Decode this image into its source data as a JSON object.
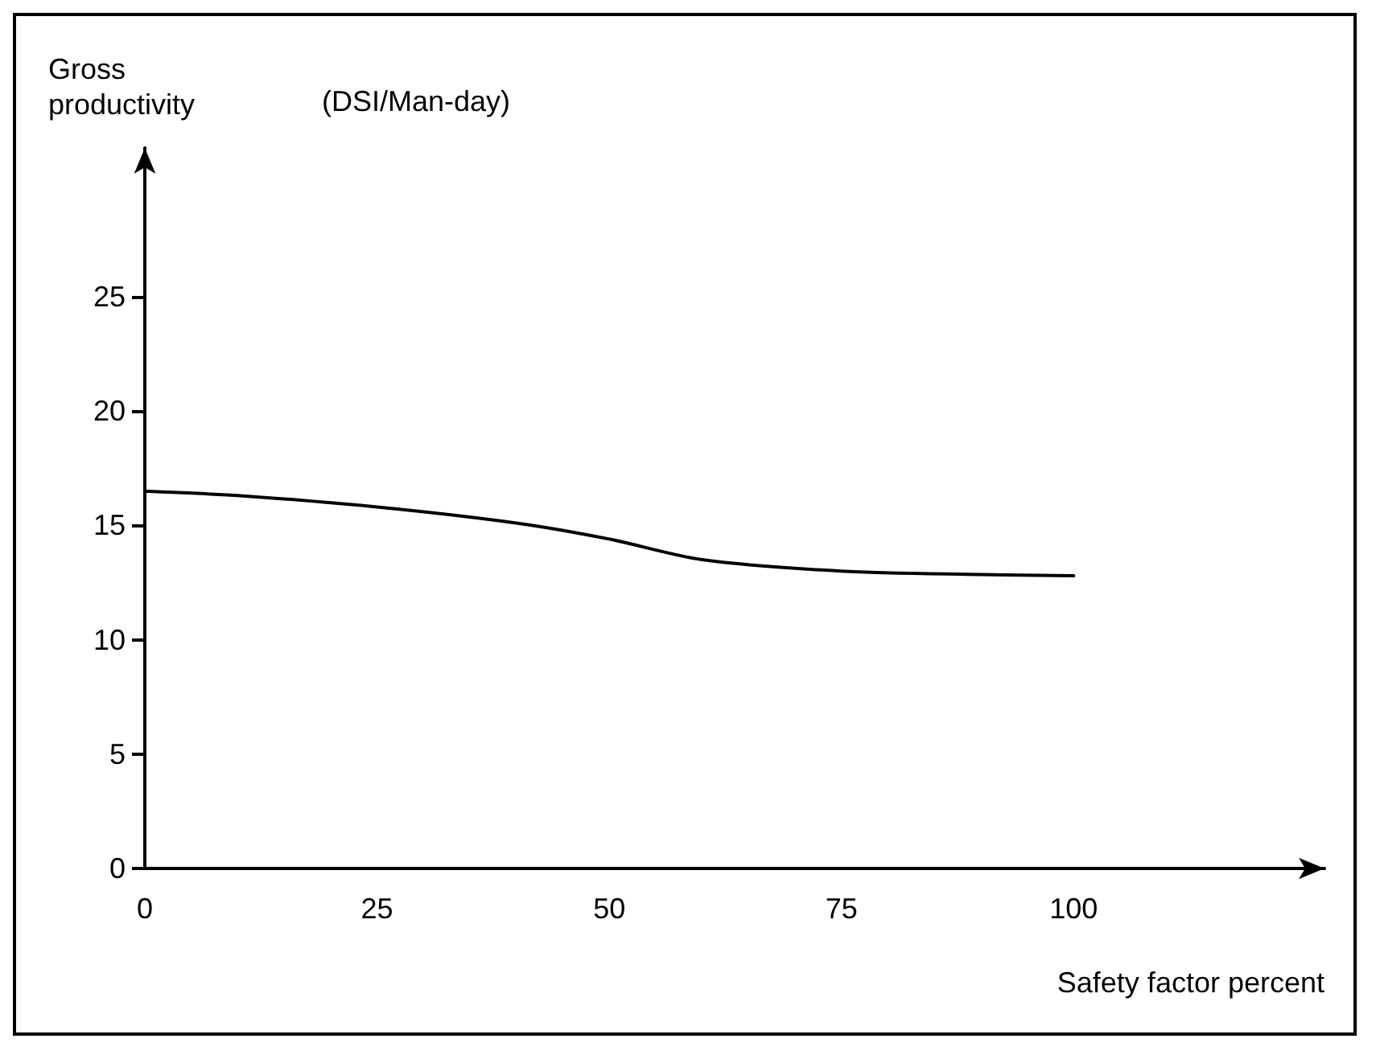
{
  "chart_data": {
    "type": "line",
    "xlabel": "Safety factor percent",
    "ylabel": "Gross productivity",
    "annotations": [
      "(DSI/Man-day)"
    ],
    "x": [
      0,
      10,
      25,
      40,
      50,
      60,
      75,
      90,
      100
    ],
    "series": [
      {
        "color": "#000000",
        "values": [
          16.5,
          16.3,
          15.8,
          15.1,
          14.4,
          13.5,
          13.0,
          12.85,
          12.8
        ]
      }
    ],
    "xlim": [
      0,
      127
    ],
    "ylim": [
      0,
      31.5
    ],
    "xticks": [
      0,
      25,
      50,
      75,
      100
    ],
    "yticks": [
      0,
      5,
      10,
      15,
      20,
      25
    ],
    "grid": false,
    "marker": "none",
    "line_style": "solid"
  }
}
